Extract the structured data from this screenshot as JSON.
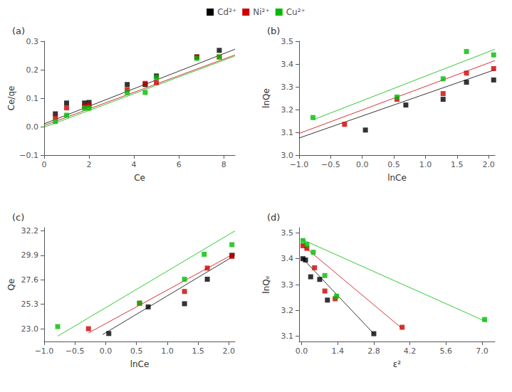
{
  "chart_data": [
    {
      "type": "scatter",
      "title": "(a)",
      "xlabel": "Ce",
      "ylabel": "Ce/qe",
      "xlim": [
        0,
        8.5
      ],
      "ylim": [
        -0.1,
        0.3
      ],
      "xticks": [
        0,
        2,
        4,
        6,
        8
      ],
      "yticks": [
        {
          "value": -0.1,
          "label": "−0.1"
        },
        {
          "value": 0.0,
          "label": "0.0"
        },
        {
          "value": 0.1,
          "label": "0.1"
        },
        {
          "value": 0.2,
          "label": "0.2"
        },
        {
          "value": 0.3,
          "label": "0.3"
        }
      ],
      "grid": false,
      "legend": "top",
      "series": [
        {
          "name": "Cd²⁺",
          "color": "#000000",
          "marker": "square",
          "x": [
            0.5,
            1.0,
            1.8,
            2.0,
            3.7,
            4.5,
            5.0,
            6.8,
            7.8
          ],
          "values": [
            0.045,
            0.083,
            0.083,
            0.085,
            0.148,
            0.148,
            0.178,
            0.245,
            0.268
          ],
          "fit_x": [
            0.0,
            8.5
          ],
          "fit_y": [
            0.01,
            0.272
          ]
        },
        {
          "name": "Ni²⁺",
          "color": "#cc0000",
          "marker": "square",
          "x": [
            0.5,
            1.0,
            1.8,
            2.0,
            3.7,
            4.5,
            5.0,
            6.8,
            7.8
          ],
          "values": [
            0.033,
            0.066,
            0.072,
            0.076,
            0.13,
            0.152,
            0.155,
            0.245,
            0.245
          ],
          "fit_x": [
            0.0,
            8.5
          ],
          "fit_y": [
            0.004,
            0.252
          ]
        },
        {
          "name": "Cu²⁺",
          "color": "#00bb00",
          "marker": "square",
          "x": [
            0.5,
            1.0,
            1.8,
            2.0,
            3.7,
            4.5,
            5.0,
            6.8,
            7.8
          ],
          "values": [
            0.018,
            0.04,
            0.065,
            0.065,
            0.12,
            0.12,
            0.173,
            0.24,
            0.245
          ],
          "fit_x": [
            0.0,
            8.5
          ],
          "fit_y": [
            -0.002,
            0.248
          ]
        }
      ]
    },
    {
      "type": "scatter",
      "title": "(b)",
      "xlabel": "lnCe",
      "ylabel": "lnQe",
      "xlim": [
        -1.0,
        2.1
      ],
      "ylim": [
        3.0,
        3.5
      ],
      "xticks": [
        {
          "value": -1.0,
          "label": "−1.0"
        },
        {
          "value": -0.5,
          "label": "−0.5"
        },
        {
          "value": 0.0,
          "label": "0.0"
        },
        0.5,
        {
          "value": 1.0,
          "label": "1.0"
        },
        1.5,
        {
          "value": 2.0,
          "label": "2.0"
        }
      ],
      "yticks": [
        {
          "value": 3.0,
          "label": "3.0"
        },
        3.1,
        3.2,
        3.3,
        3.4,
        3.5
      ],
      "grid": false,
      "legend": "top",
      "series": [
        {
          "name": "Cd²⁺",
          "color": "#000000",
          "marker": "square",
          "x": [
            0.05,
            0.69,
            1.28,
            1.65,
            2.08
          ],
          "values": [
            3.11,
            3.22,
            3.245,
            3.32,
            3.33
          ],
          "fit_x": [
            -1.0,
            2.1
          ],
          "fit_y": [
            3.075,
            3.375
          ]
        },
        {
          "name": "Ni²⁺",
          "color": "#cc0000",
          "marker": "square",
          "x": [
            -0.28,
            0.55,
            1.28,
            1.65,
            2.08
          ],
          "values": [
            3.135,
            3.245,
            3.27,
            3.36,
            3.38
          ],
          "fit_x": [
            -1.0,
            2.1
          ],
          "fit_y": [
            3.095,
            3.415
          ]
        },
        {
          "name": "Cu²⁺",
          "color": "#00bb00",
          "marker": "square",
          "x": [
            -0.78,
            0.55,
            1.28,
            1.65,
            2.08
          ],
          "values": [
            3.165,
            3.255,
            3.335,
            3.455,
            3.44
          ],
          "fit_x": [
            -0.78,
            2.1
          ],
          "fit_y": [
            3.155,
            3.465
          ]
        }
      ]
    },
    {
      "type": "scatter",
      "title": "(c)",
      "xlabel": "lnCe",
      "ylabel": "Qe",
      "xlim": [
        -1.0,
        2.1
      ],
      "ylim": [
        21.8,
        32.5
      ],
      "xticks": [
        {
          "value": -1.0,
          "label": "−1.0"
        },
        {
          "value": -0.5,
          "label": "−0.5"
        },
        {
          "value": 0.0,
          "label": "0.0"
        },
        0.5,
        {
          "value": 1.0,
          "label": "1.0"
        },
        1.5,
        {
          "value": 2.0,
          "label": "2.0"
        }
      ],
      "yticks": [
        {
          "value": 23.0,
          "label": "23.0"
        },
        25.3,
        27.6,
        29.9,
        32.2
      ],
      "grid": false,
      "legend": "top",
      "series": [
        {
          "name": "Cd²⁺",
          "color": "#000000",
          "marker": "square",
          "x": [
            0.05,
            0.69,
            1.28,
            1.65,
            2.05
          ],
          "values": [
            22.55,
            25.05,
            25.35,
            27.65,
            29.9
          ],
          "fit_x": [
            -0.05,
            2.1
          ],
          "fit_y": [
            22.45,
            29.9
          ]
        },
        {
          "name": "Ni²⁺",
          "color": "#cc0000",
          "marker": "square",
          "x": [
            -0.28,
            0.55,
            1.28,
            1.65,
            2.05
          ],
          "values": [
            23.0,
            25.4,
            26.5,
            28.7,
            29.8
          ],
          "fit_x": [
            -0.28,
            2.1
          ],
          "fit_y": [
            22.6,
            30.1
          ]
        },
        {
          "name": "Cu²⁺",
          "color": "#00bb00",
          "marker": "square",
          "x": [
            -0.78,
            0.55,
            1.28,
            1.6,
            2.05
          ],
          "values": [
            23.2,
            25.4,
            27.65,
            30.0,
            30.9
          ],
          "fit_x": [
            -0.78,
            2.1
          ],
          "fit_y": [
            22.3,
            32.2
          ]
        }
      ]
    },
    {
      "type": "scatter",
      "title": "(d)",
      "xlabel": "ε²",
      "ylabel": "lnQₑ",
      "xlim": [
        -0.1,
        7.5
      ],
      "ylim": [
        3.08,
        3.52
      ],
      "xticks": [
        {
          "value": 0.0,
          "label": "0.0"
        },
        1.4,
        2.8,
        4.2,
        5.6,
        {
          "value": 7.0,
          "label": "7.0"
        }
      ],
      "yticks": [
        3.1,
        3.2,
        3.3,
        3.4,
        3.5
      ],
      "grid": false,
      "legend": "top",
      "series": [
        {
          "name": "Cd²⁺",
          "color": "#000000",
          "marker": "square",
          "x": [
            0.05,
            0.15,
            0.35,
            0.7,
            1.0,
            2.8
          ],
          "values": [
            3.4,
            3.395,
            3.33,
            3.32,
            3.24,
            3.11
          ],
          "fit_x": [
            0.0,
            2.8
          ],
          "fit_y": [
            3.405,
            3.11
          ]
        },
        {
          "name": "Ni²⁺",
          "color": "#cc0000",
          "marker": "square",
          "x": [
            0.05,
            0.2,
            0.5,
            0.9,
            1.3,
            3.9
          ],
          "values": [
            3.45,
            3.44,
            3.365,
            3.275,
            3.245,
            3.135
          ],
          "fit_x": [
            0.0,
            3.9
          ],
          "fit_y": [
            3.455,
            3.13
          ]
        },
        {
          "name": "Cu²⁺",
          "color": "#00bb00",
          "marker": "square",
          "x": [
            0.05,
            0.2,
            0.45,
            0.9,
            1.35,
            7.1
          ],
          "values": [
            3.47,
            3.455,
            3.425,
            3.335,
            3.255,
            3.165
          ],
          "fit_x": [
            0.0,
            7.2
          ],
          "fit_y": [
            3.475,
            3.155
          ]
        }
      ]
    }
  ]
}
